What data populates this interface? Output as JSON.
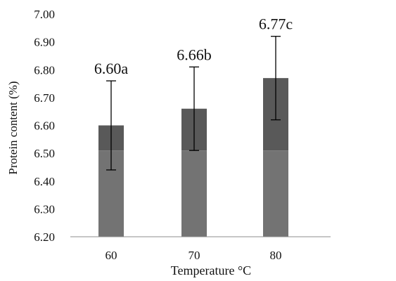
{
  "chart_data": {
    "type": "bar",
    "title": "",
    "xlabel": "Temperature °C",
    "ylabel": "Protein  content (%)",
    "categories": [
      "60",
      "70",
      "80"
    ],
    "values": [
      6.6,
      6.66,
      6.77
    ],
    "error_bars": [
      {
        "low": 6.44,
        "high": 6.76
      },
      {
        "low": 6.51,
        "high": 6.81
      },
      {
        "low": 6.62,
        "high": 6.92
      }
    ],
    "data_labels": [
      "6.60a",
      "6.66b",
      "6.77c"
    ],
    "ylim": [
      6.2,
      7.0
    ],
    "yticks": [
      "6.20",
      "6.30",
      "6.40",
      "6.50",
      "6.60",
      "6.70",
      "6.80",
      "6.90",
      "7.00"
    ],
    "grid": false,
    "legend": "none",
    "colors": {
      "bar_top": "#595959",
      "bar_bottom": "#737373",
      "axis": "#8c8c8c",
      "errorbar": "#000000"
    }
  }
}
